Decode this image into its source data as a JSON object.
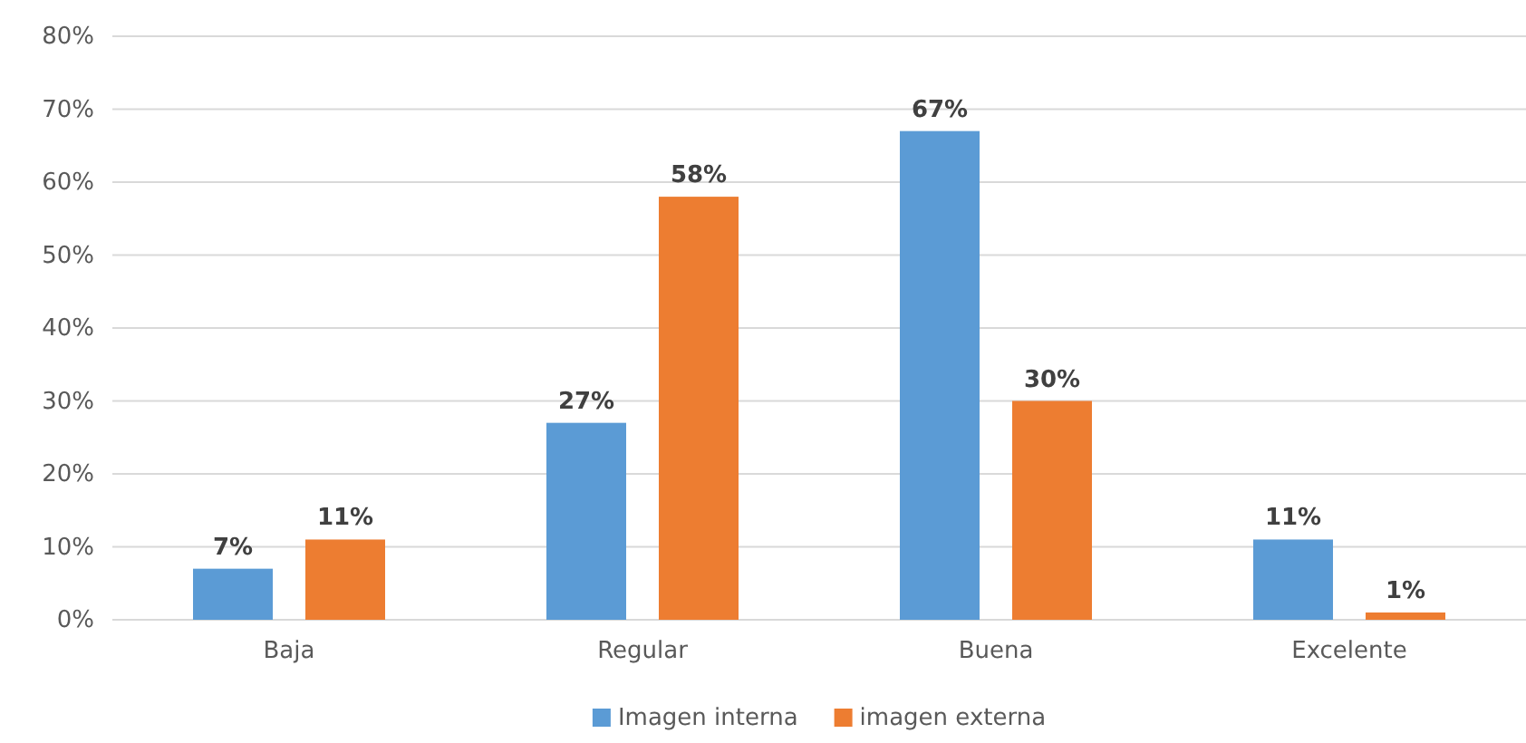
{
  "chart_data": {
    "type": "bar",
    "categories": [
      "Baja",
      "Regular",
      "Buena",
      "Excelente"
    ],
    "series": [
      {
        "name": "Imagen interna",
        "color": "#5b9bd5",
        "values": [
          7,
          27,
          67,
          11
        ],
        "value_labels": [
          "7%",
          "27%",
          "67%",
          "11%"
        ]
      },
      {
        "name": "imagen externa",
        "color": "#ed7d31",
        "values": [
          11,
          58,
          30,
          1
        ],
        "value_labels": [
          "11%",
          "58%",
          "30%",
          "1%"
        ]
      }
    ],
    "ylim": [
      0,
      80
    ],
    "yticks": [
      {
        "value": 0,
        "label": "0%"
      },
      {
        "value": 10,
        "label": "10%"
      },
      {
        "value": 20,
        "label": "20%"
      },
      {
        "value": 30,
        "label": "30%"
      },
      {
        "value": 40,
        "label": "40%"
      },
      {
        "value": 50,
        "label": "50%"
      },
      {
        "value": 60,
        "label": "60%"
      },
      {
        "value": 70,
        "label": "70%"
      },
      {
        "value": 80,
        "label": "80%"
      }
    ],
    "grid": "y",
    "legend": "bottom"
  }
}
